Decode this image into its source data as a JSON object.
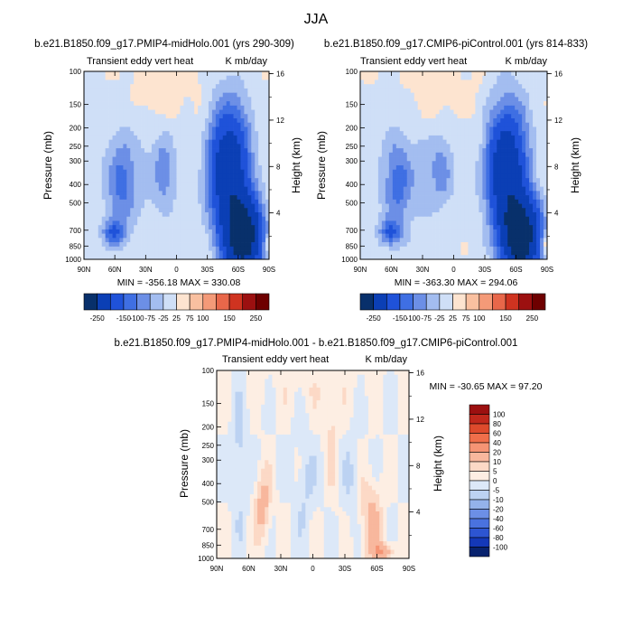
{
  "figure": {
    "season": "JJA"
  },
  "chart_data": [
    {
      "type": "heatmap",
      "id": "p1",
      "title": "b.e21.B1850.f09_g17.PMIP4-midHolo.001 (yrs 290-309)",
      "left_label": "Transient eddy vert heat",
      "right_label": "K mb/day",
      "ylabel": "Pressure (mb)",
      "y2label": "Height (km)",
      "x_ticks": [
        "90N",
        "60N",
        "30N",
        "0",
        "30S",
        "60S",
        "90S"
      ],
      "y_ticks": [
        "100",
        "150",
        "200",
        "250",
        "300",
        "400",
        "500",
        "700",
        "850",
        "1000"
      ],
      "y2_ticks": [
        "16",
        "12",
        "8",
        "4"
      ],
      "stats": "MIN = -356.18  MAX = 330.08",
      "colorbar_labels": [
        "-250",
        "-150",
        "-100",
        "-75",
        "-25",
        "25",
        "75",
        "100",
        "150",
        "250"
      ]
    },
    {
      "type": "heatmap",
      "id": "p2",
      "title": "b.e21.B1850.f09_g17.CMIP6-piControl.001 (yrs 814-833)",
      "left_label": "Transient eddy vert heat",
      "right_label": "K mb/day",
      "ylabel": "Pressure (mb)",
      "y2label": "Height (km)",
      "x_ticks": [
        "90N",
        "60N",
        "30N",
        "0",
        "30S",
        "60S",
        "90S"
      ],
      "y_ticks": [
        "100",
        "150",
        "200",
        "250",
        "300",
        "400",
        "500",
        "700",
        "850",
        "1000"
      ],
      "y2_ticks": [
        "16",
        "12",
        "8",
        "4"
      ],
      "stats": "MIN = -363.30  MAX = 294.06",
      "colorbar_labels": [
        "-250",
        "-150",
        "-100",
        "-75",
        "-25",
        "25",
        "75",
        "100",
        "150",
        "250"
      ]
    },
    {
      "type": "heatmap",
      "id": "p3",
      "title": "b.e21.B1850.f09_g17.PMIP4-midHolo.001 - b.e21.B1850.f09_g17.CMIP6-piControl.001",
      "left_label": "Transient eddy vert heat",
      "right_label": "K mb/day",
      "ylabel": "Pressure (mb)",
      "y2label": "Height (km)",
      "x_ticks": [
        "90N",
        "60N",
        "30N",
        "0",
        "30S",
        "60S",
        "90S"
      ],
      "y_ticks": [
        "100",
        "150",
        "200",
        "250",
        "300",
        "400",
        "500",
        "700",
        "850",
        "1000"
      ],
      "y2_ticks": [
        "16",
        "12",
        "8",
        "4"
      ],
      "stats": "MIN = -30.65  MAX =  97.20",
      "colorbar_labels": [
        "100",
        "80",
        "60",
        "40",
        "20",
        "10",
        "5",
        "0",
        "-5",
        "-10",
        "-20",
        "-40",
        "-60",
        "-80",
        "-100"
      ]
    }
  ],
  "colors": {
    "abs_scale": [
      "#08306b",
      "#0b3fb5",
      "#1f52d9",
      "#3f6fe3",
      "#6c8fe6",
      "#a3bdf0",
      "#cfdff7",
      "#fde4d0",
      "#f9c0a0",
      "#f49a78",
      "#e8674a",
      "#cf3320",
      "#9c1010",
      "#6e0000"
    ],
    "diff_scale": [
      "#9c1010",
      "#c0281c",
      "#dd4a2c",
      "#ef6e4a",
      "#f59474",
      "#f8b79d",
      "#fcd9c6",
      "#fdeee3",
      "#dce8f8",
      "#bcd2f2",
      "#94b2ea",
      "#6c8fe6",
      "#4a72df",
      "#2d55d2",
      "#1438b8",
      "#08226e"
    ]
  }
}
